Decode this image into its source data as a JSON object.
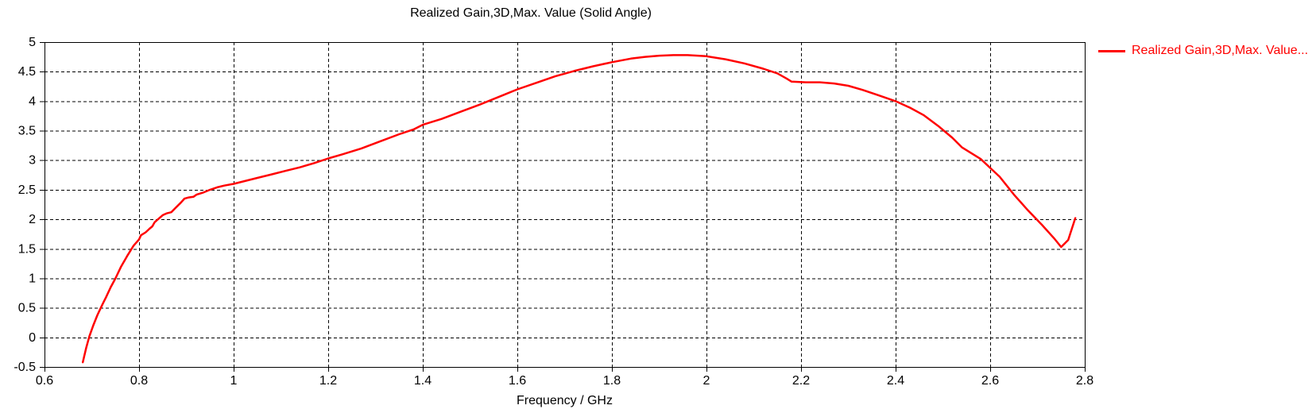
{
  "window": {
    "title": "Realized Gain,3D,Max. Value (Solid Angle)"
  },
  "legend": {
    "label": "Realized Gain,3D,Max. Value...",
    "position": "right"
  },
  "colors": {
    "curve": "#ff0000",
    "legend_text": "#ff0000",
    "axis": "#000000",
    "grid": "#000000",
    "tick_label": "#000000",
    "background": "#ffffff"
  },
  "chart_data": {
    "type": "line",
    "title": "Realized Gain,3D,Max. Value (Solid Angle)",
    "xlabel": "Frequency / GHz",
    "ylabel": "",
    "xlim": [
      0.6,
      2.8
    ],
    "ylim": [
      -0.5,
      5
    ],
    "x_ticks": [
      0.6,
      0.8,
      1,
      1.2,
      1.4,
      1.6,
      1.8,
      2,
      2.2,
      2.4,
      2.6,
      2.8
    ],
    "y_ticks": [
      -0.5,
      0,
      0.5,
      1,
      1.5,
      2,
      2.5,
      3,
      3.5,
      4,
      4.5,
      5
    ],
    "grid": "dashed",
    "legend_position": "right",
    "series": [
      {
        "name": "Realized Gain,3D,Max. Value...",
        "color": "#ff0000",
        "points": [
          [
            0.681,
            -0.42
          ],
          [
            0.688,
            -0.18
          ],
          [
            0.695,
            0.02
          ],
          [
            0.703,
            0.2
          ],
          [
            0.712,
            0.38
          ],
          [
            0.722,
            0.55
          ],
          [
            0.73,
            0.68
          ],
          [
            0.74,
            0.85
          ],
          [
            0.75,
            1.0
          ],
          [
            0.762,
            1.2
          ],
          [
            0.775,
            1.38
          ],
          [
            0.788,
            1.55
          ],
          [
            0.8,
            1.66
          ],
          [
            0.804,
            1.73
          ],
          [
            0.814,
            1.78
          ],
          [
            0.822,
            1.84
          ],
          [
            0.828,
            1.88
          ],
          [
            0.833,
            1.95
          ],
          [
            0.84,
            2.0
          ],
          [
            0.85,
            2.07
          ],
          [
            0.858,
            2.1
          ],
          [
            0.868,
            2.12
          ],
          [
            0.878,
            2.2
          ],
          [
            0.888,
            2.28
          ],
          [
            0.896,
            2.35
          ],
          [
            0.905,
            2.37
          ],
          [
            0.915,
            2.38
          ],
          [
            0.922,
            2.42
          ],
          [
            0.935,
            2.45
          ],
          [
            0.95,
            2.5
          ],
          [
            0.965,
            2.54
          ],
          [
            0.98,
            2.57
          ],
          [
            1.0,
            2.6
          ],
          [
            1.02,
            2.64
          ],
          [
            1.05,
            2.7
          ],
          [
            1.08,
            2.76
          ],
          [
            1.11,
            2.82
          ],
          [
            1.14,
            2.88
          ],
          [
            1.17,
            2.95
          ],
          [
            1.2,
            3.03
          ],
          [
            1.23,
            3.1
          ],
          [
            1.27,
            3.2
          ],
          [
            1.31,
            3.32
          ],
          [
            1.35,
            3.44
          ],
          [
            1.38,
            3.52
          ],
          [
            1.4,
            3.6
          ],
          [
            1.44,
            3.7
          ],
          [
            1.48,
            3.82
          ],
          [
            1.52,
            3.94
          ],
          [
            1.56,
            4.07
          ],
          [
            1.6,
            4.2
          ],
          [
            1.64,
            4.31
          ],
          [
            1.68,
            4.42
          ],
          [
            1.72,
            4.51
          ],
          [
            1.76,
            4.59
          ],
          [
            1.8,
            4.66
          ],
          [
            1.84,
            4.72
          ],
          [
            1.87,
            4.75
          ],
          [
            1.9,
            4.77
          ],
          [
            1.93,
            4.78
          ],
          [
            1.96,
            4.78
          ],
          [
            2.0,
            4.76
          ],
          [
            2.04,
            4.71
          ],
          [
            2.08,
            4.64
          ],
          [
            2.12,
            4.55
          ],
          [
            2.15,
            4.47
          ],
          [
            2.17,
            4.38
          ],
          [
            2.18,
            4.33
          ],
          [
            2.21,
            4.32
          ],
          [
            2.24,
            4.32
          ],
          [
            2.27,
            4.3
          ],
          [
            2.3,
            4.26
          ],
          [
            2.33,
            4.19
          ],
          [
            2.36,
            4.11
          ],
          [
            2.4,
            4.0
          ],
          [
            2.43,
            3.89
          ],
          [
            2.46,
            3.76
          ],
          [
            2.49,
            3.58
          ],
          [
            2.52,
            3.38
          ],
          [
            2.54,
            3.22
          ],
          [
            2.56,
            3.12
          ],
          [
            2.58,
            3.02
          ],
          [
            2.6,
            2.87
          ],
          [
            2.62,
            2.72
          ],
          [
            2.65,
            2.42
          ],
          [
            2.68,
            2.15
          ],
          [
            2.71,
            1.9
          ],
          [
            2.735,
            1.68
          ],
          [
            2.75,
            1.53
          ],
          [
            2.765,
            1.65
          ],
          [
            2.78,
            2.02
          ]
        ]
      }
    ]
  }
}
